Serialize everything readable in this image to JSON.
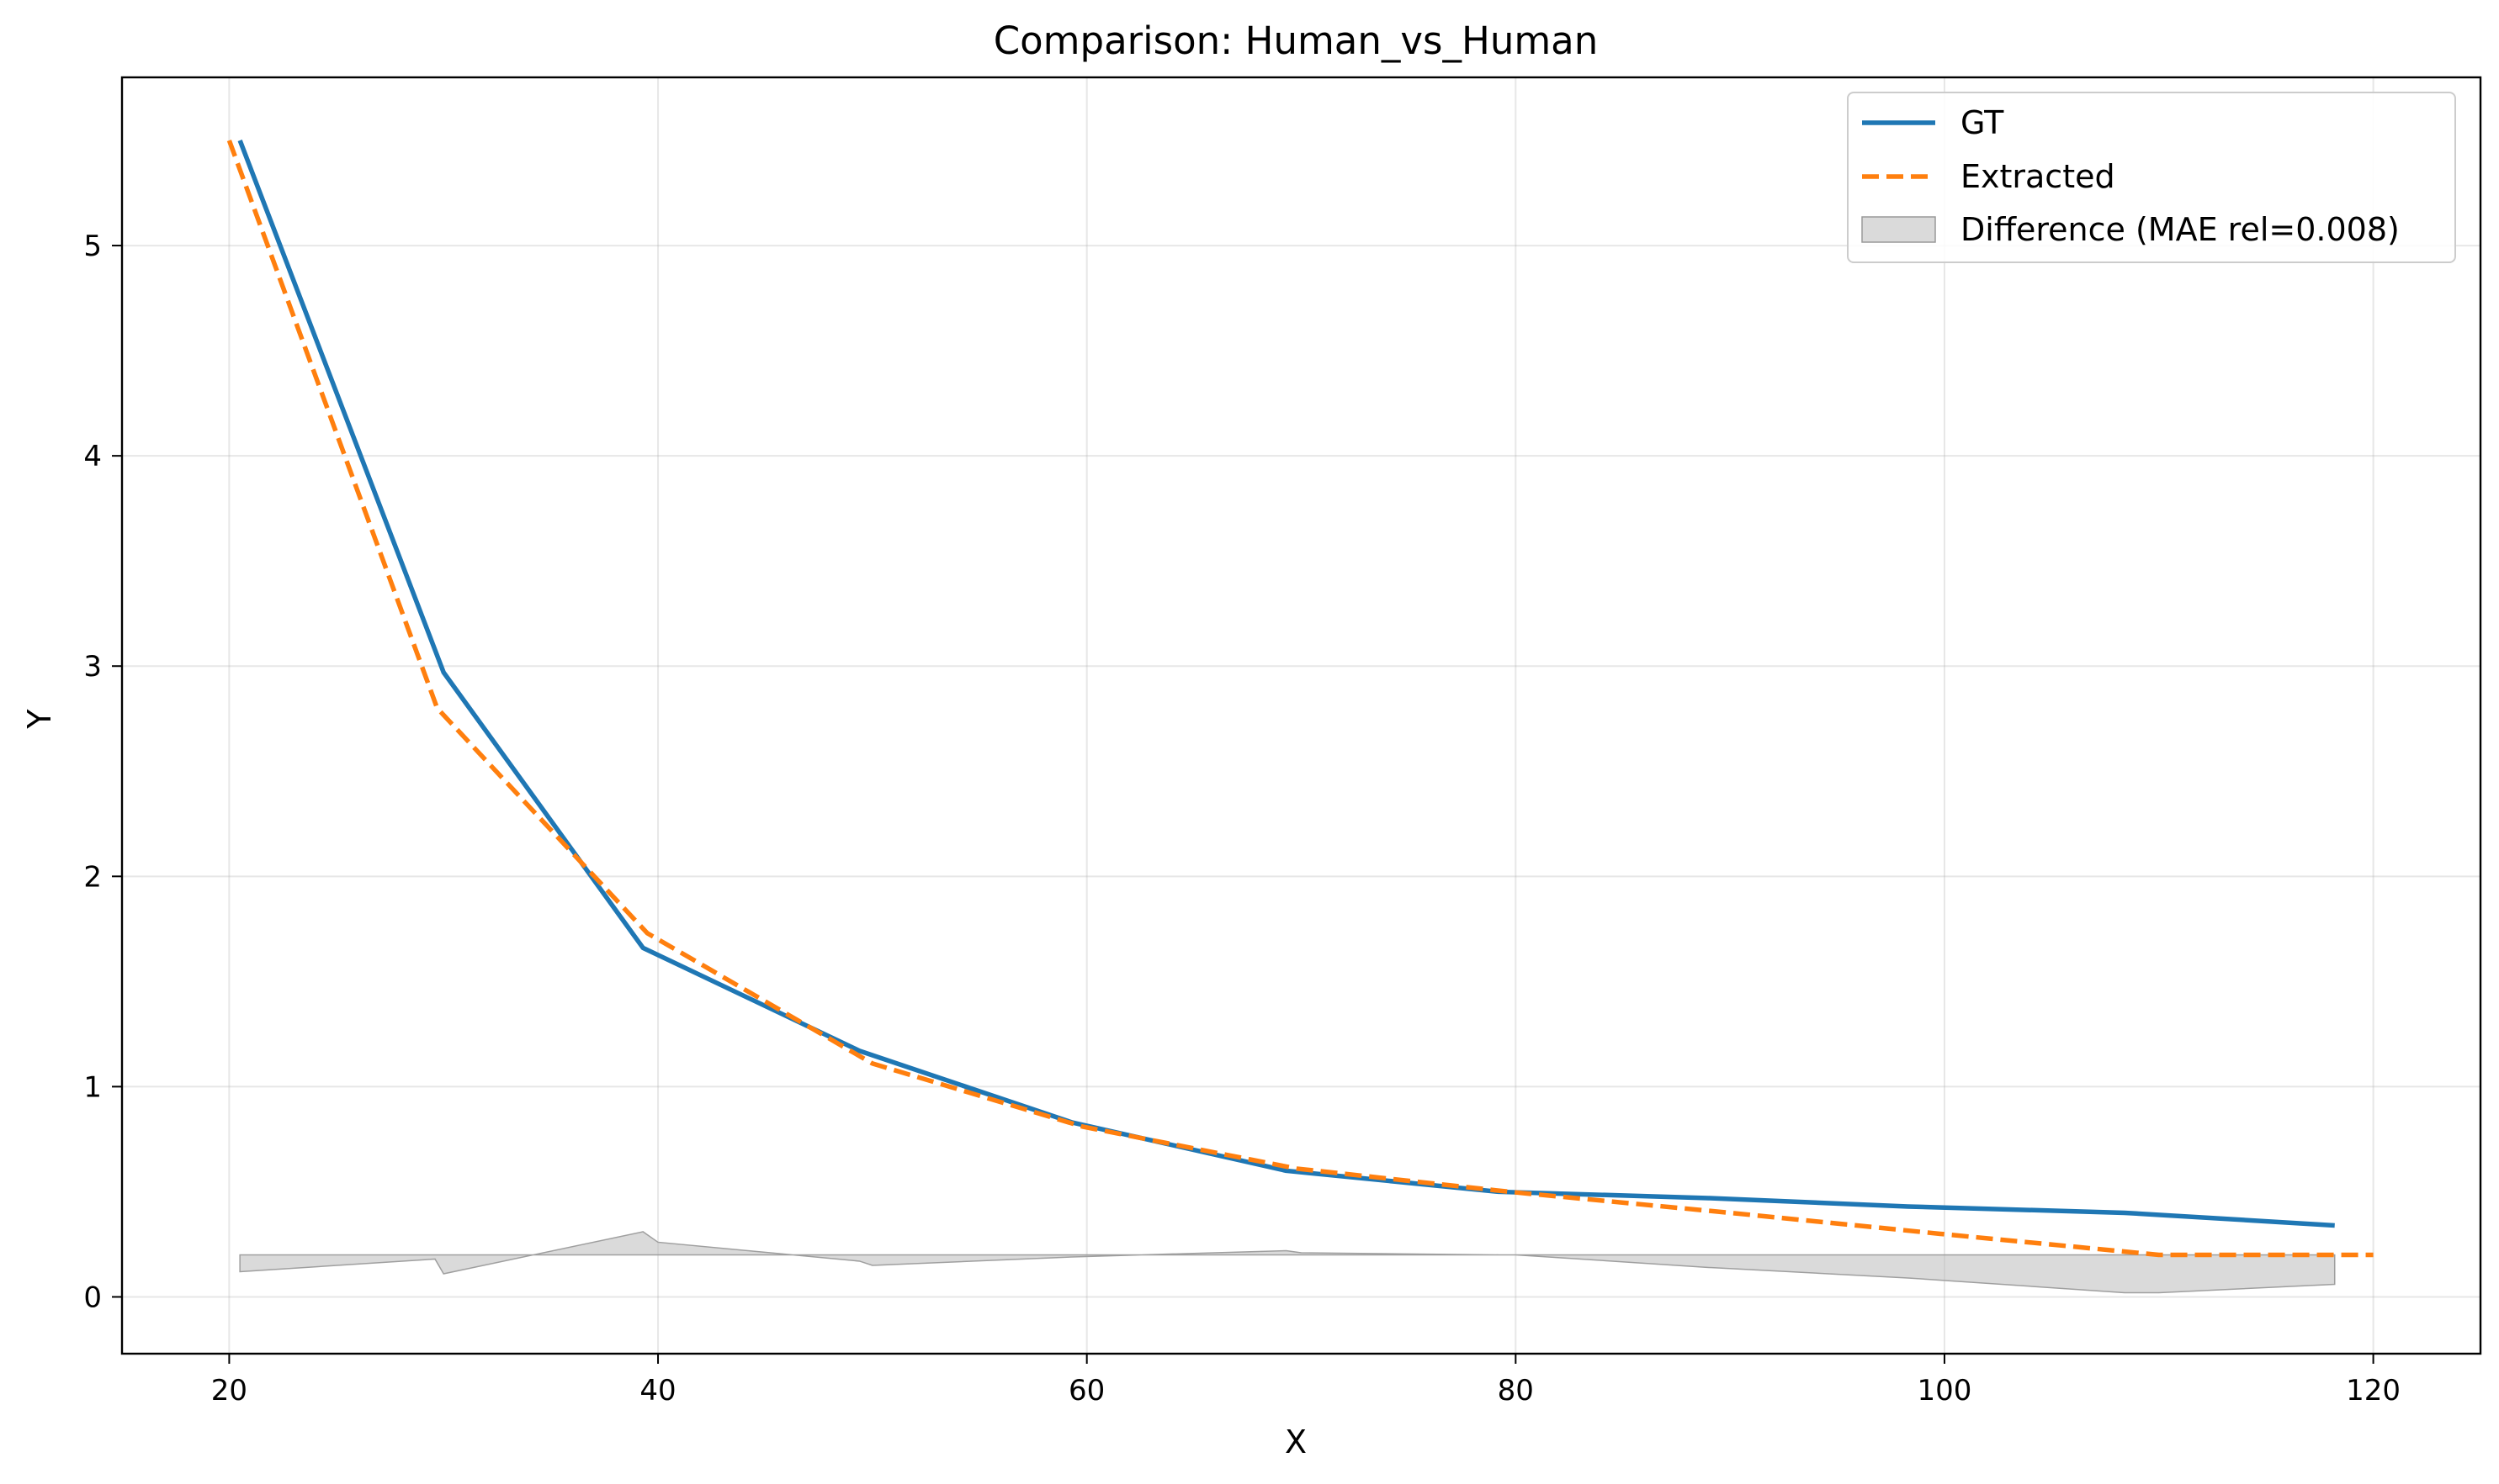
{
  "chart_data": {
    "type": "line",
    "title": "Comparison: Human_vs_Human",
    "xlabel": "X",
    "ylabel": "Y",
    "xlim": [
      15,
      125
    ],
    "ylim": [
      -0.27,
      5.8
    ],
    "xticks": [
      20,
      40,
      60,
      80,
      100,
      120
    ],
    "yticks": [
      0,
      1,
      2,
      3,
      4,
      5
    ],
    "grid": true,
    "legend_position": "top-right",
    "series": [
      {
        "name": "GT",
        "style": "solid",
        "color": "#1f77b4",
        "x": [
          20.5,
          30.0,
          39.3,
          49.4,
          59.3,
          69.3,
          79.2,
          89.0,
          98.3,
          108.4,
          118.2
        ],
        "y": [
          5.5,
          2.97,
          1.66,
          1.17,
          0.83,
          0.6,
          0.5,
          0.47,
          0.43,
          0.4,
          0.34
        ]
      },
      {
        "name": "Extracted",
        "style": "dashed",
        "color": "#ff7f0e",
        "x": [
          20.0,
          29.7,
          39.5,
          50.0,
          59.8,
          69.8,
          79.7,
          90.0,
          99.8,
          110.0,
          120.0
        ],
        "y": [
          5.5,
          2.8,
          1.73,
          1.11,
          0.81,
          0.61,
          0.5,
          0.4,
          0.3,
          0.2,
          0.2
        ]
      }
    ],
    "difference": {
      "name": "Difference (MAE rel=0.008)",
      "color": "#bbbbbb",
      "baseline": 0.2,
      "x": [
        20.5,
        29.6,
        30.0,
        39.3,
        40.0,
        49.4,
        50.0,
        59.3,
        69.3,
        70.0,
        79.2,
        80.0,
        89.0,
        98.3,
        108.4,
        110.0,
        118.2
      ],
      "y": [
        0.12,
        0.18,
        0.11,
        0.31,
        0.26,
        0.17,
        0.15,
        0.19,
        0.22,
        0.21,
        0.2,
        0.2,
        0.14,
        0.09,
        0.02,
        0.02,
        0.06
      ]
    }
  }
}
